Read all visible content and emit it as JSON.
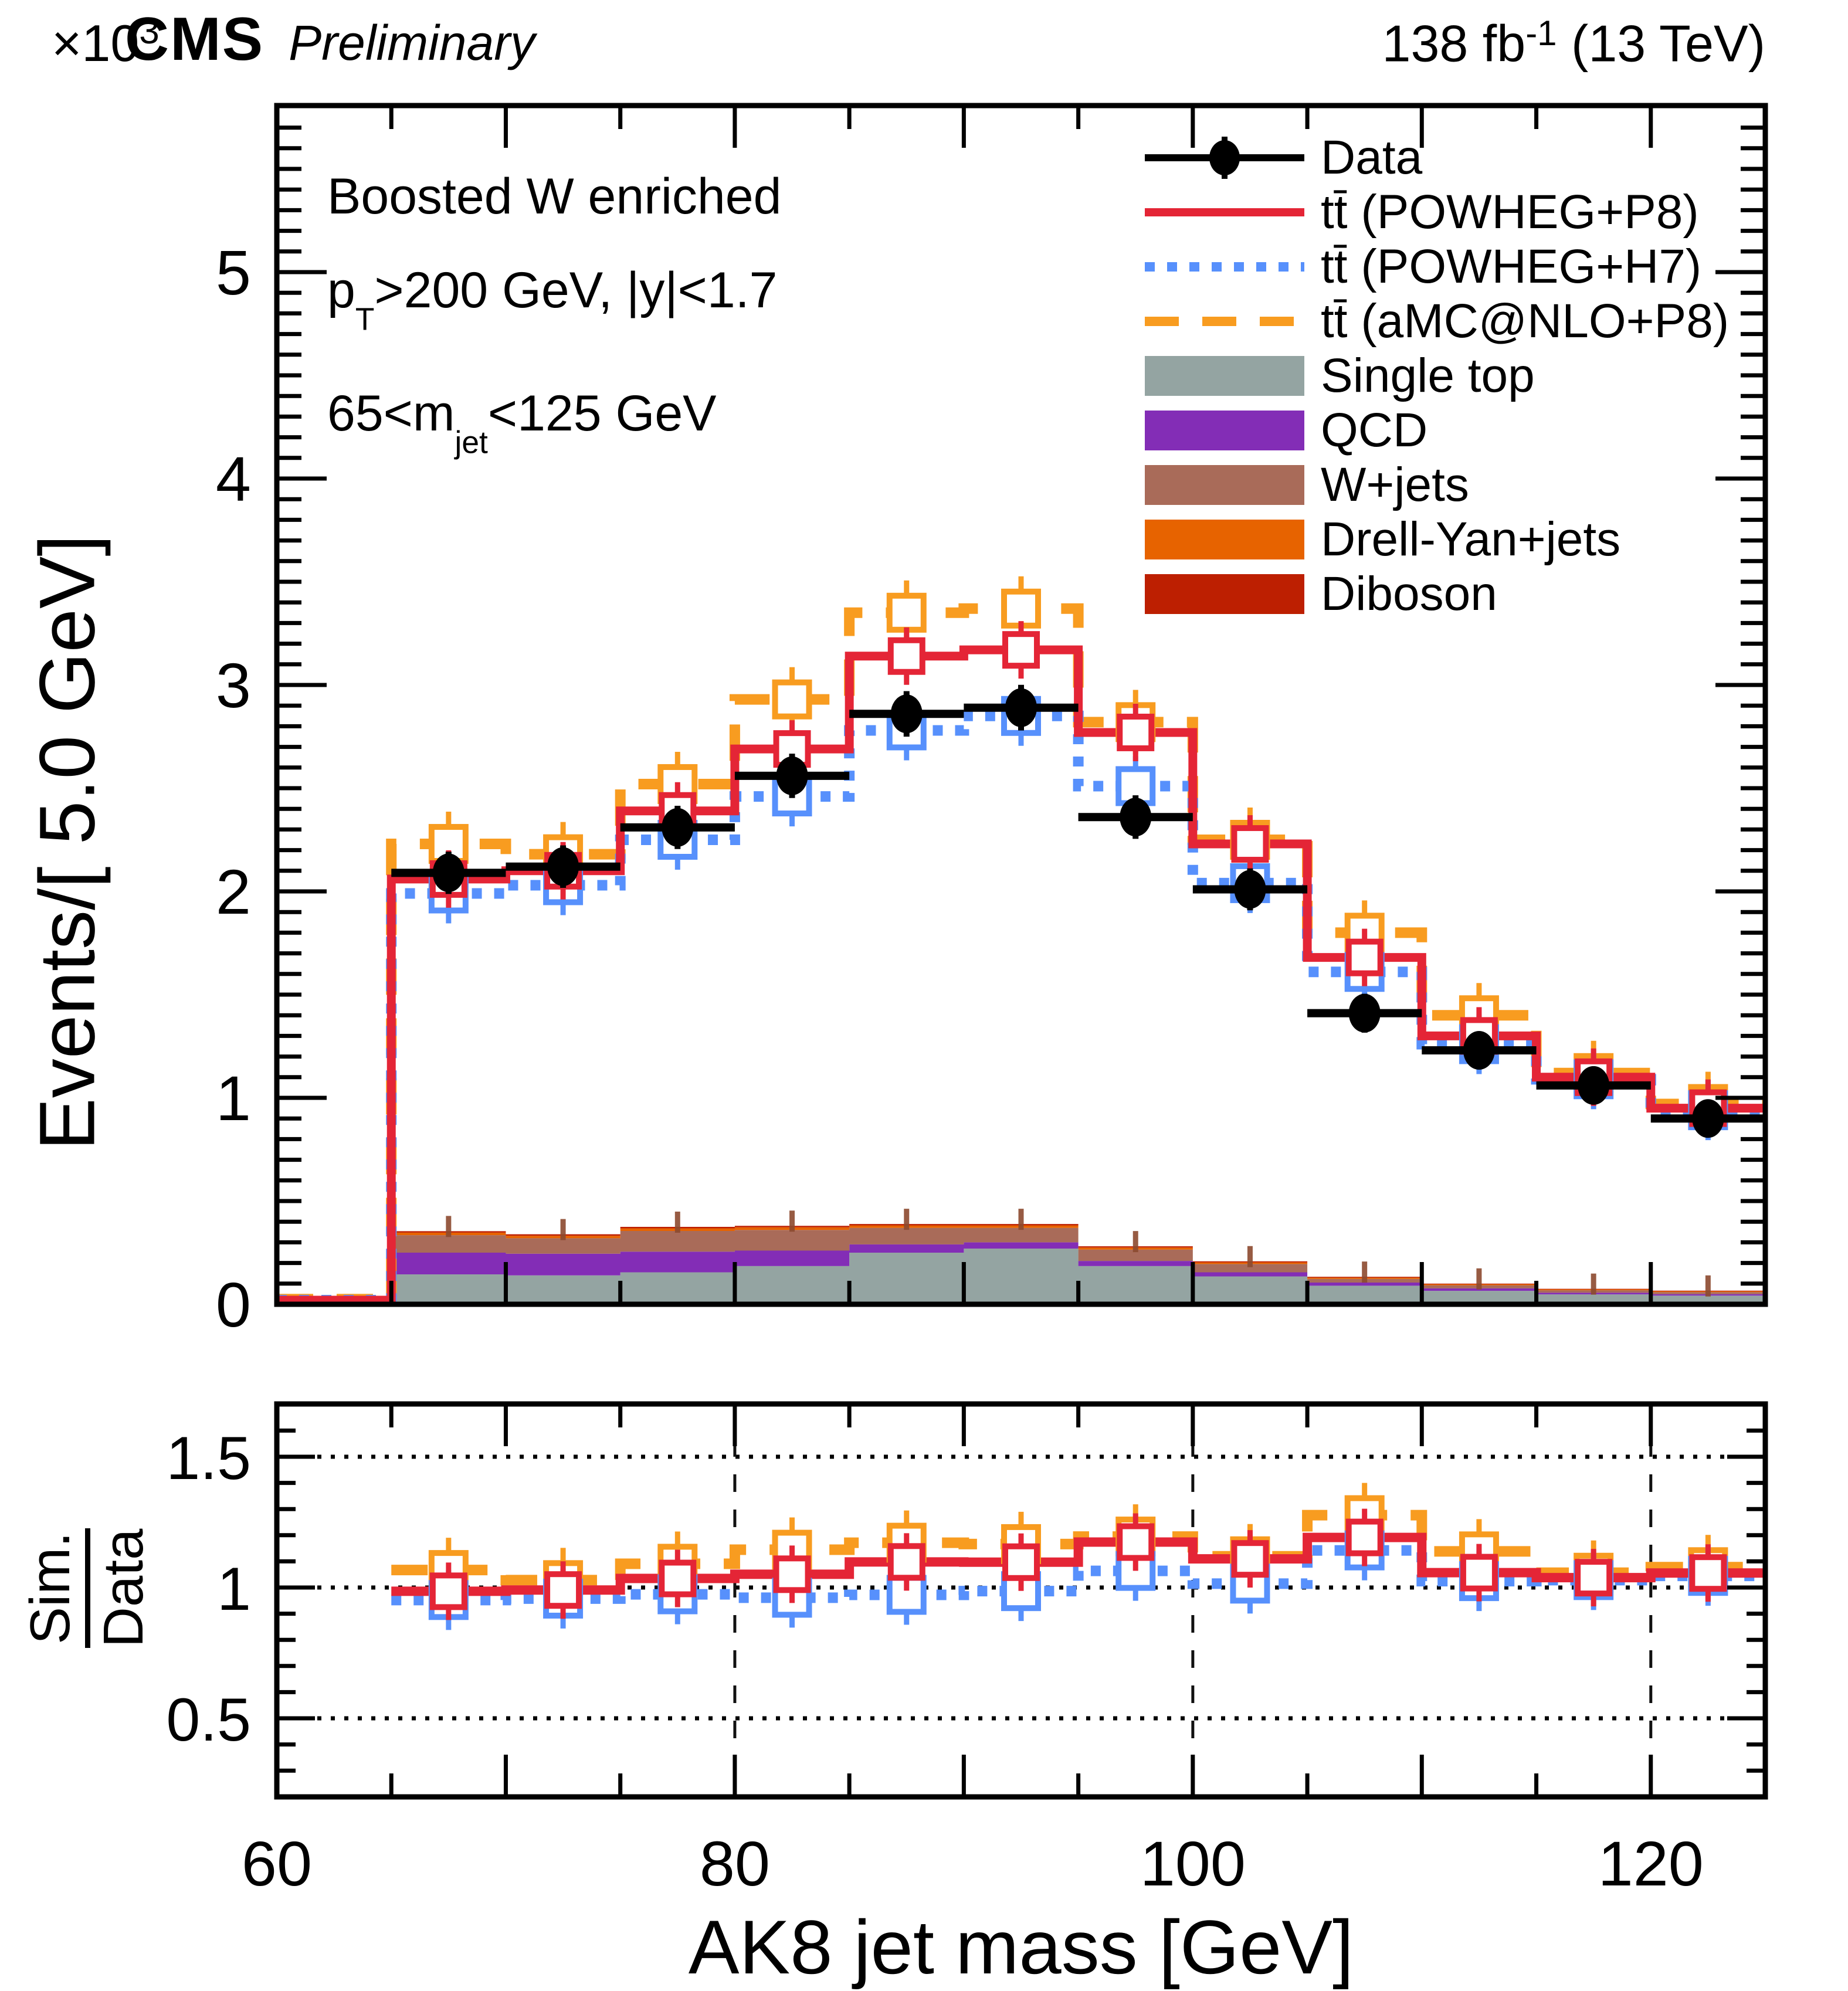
{
  "header": {
    "power": "×10",
    "power_exp": "3",
    "cms": "CMS",
    "preliminary": "Preliminary",
    "lumi_pre": "138 fb",
    "lumi_sup": "-1",
    "lumi_post": " (13 TeV)"
  },
  "annotations": {
    "line1": "Boosted W enriched",
    "line2_pre": "p",
    "line2_sub": "T",
    "line2_post": ">200 GeV, |y|<1.7",
    "line3_pre": "65<m",
    "line3_sub": "jet",
    "line3_post": "<125 GeV"
  },
  "axes": {
    "main_y_title": "Events/[ 5.0 GeV]",
    "ratio_y_title_num": "Sim.",
    "ratio_y_title_den": "Data",
    "x_title": "AK8 jet mass [GeV]",
    "x_tick_labels": [
      "60",
      "80",
      "100",
      "120"
    ],
    "x_tick_values": [
      60,
      80,
      100,
      120
    ],
    "main_y_tick_labels": [
      "0",
      "1",
      "2",
      "3",
      "4",
      "5"
    ],
    "main_y_tick_values": [
      0,
      1,
      2,
      3,
      4,
      5
    ],
    "ratio_y_tick_labels": [
      "0.5",
      "1",
      "1.5"
    ],
    "ratio_y_tick_values": [
      0.5,
      1.0,
      1.5
    ]
  },
  "legend": [
    {
      "id": "data",
      "label": "Data",
      "type": "marker",
      "color": "#000000"
    },
    {
      "id": "tt-powheg-p8",
      "label": "tt̄ (POWHEG+P8)",
      "type": "solid-line",
      "color": "#e42536"
    },
    {
      "id": "tt-powheg-h7",
      "label": "tt̄ (POWHEG+H7)",
      "type": "dotted-line",
      "color": "#5790fc"
    },
    {
      "id": "tt-amcnlo-p8",
      "label": "tt̄ (aMC@NLO+P8)",
      "type": "dashed-line",
      "color": "#f89c20"
    },
    {
      "id": "single-top",
      "label": "Single top",
      "type": "box",
      "color": "#94a4a2"
    },
    {
      "id": "qcd",
      "label": "QCD",
      "type": "box",
      "color": "#832db6"
    },
    {
      "id": "w-jets",
      "label": "W+jets",
      "type": "box",
      "color": "#a96b59"
    },
    {
      "id": "drell-yan-jets",
      "label": "Drell-Yan+jets",
      "type": "box",
      "color": "#e76300"
    },
    {
      "id": "diboson",
      "label": "Diboson",
      "type": "box",
      "color": "#bd1f01"
    }
  ],
  "chart_data": {
    "type": "bar",
    "subtype": "histogram-with-ratio-panel",
    "x_unit": "GeV",
    "y_unit": "10^3 events per 5.0 GeV",
    "bin_edges": [
      60,
      65,
      70,
      75,
      80,
      85,
      90,
      95,
      100,
      105,
      110,
      115,
      120,
      125
    ],
    "xlim": [
      60,
      125
    ],
    "main_ylim": [
      0,
      5.81
    ],
    "ratio_ylim": [
      0.2,
      1.7
    ],
    "grid": {
      "main": false,
      "ratio_h_dotted": [
        0.5,
        1.0,
        1.5
      ],
      "ratio_v_dashed": [
        80,
        100,
        120
      ]
    },
    "series": [
      {
        "name": "Data",
        "style": "points",
        "color": "#000000",
        "values": [
          0.02,
          2.09,
          2.12,
          2.31,
          2.56,
          2.86,
          2.89,
          2.36,
          2.01,
          1.41,
          1.23,
          1.06,
          0.9
        ]
      },
      {
        "name": "tt (POWHEG+P8)",
        "style": "solid",
        "color": "#e42536",
        "values": [
          0.02,
          2.06,
          2.1,
          2.39,
          2.69,
          3.14,
          3.17,
          2.77,
          2.23,
          1.68,
          1.3,
          1.1,
          0.95
        ]
      },
      {
        "name": "tt (POWHEG+H7)",
        "style": "dotted",
        "color": "#5790fc",
        "values": [
          0.02,
          1.99,
          2.03,
          2.25,
          2.46,
          2.78,
          2.85,
          2.51,
          2.04,
          1.61,
          1.26,
          1.09,
          0.94
        ]
      },
      {
        "name": "tt (aMC@NLO+P8)",
        "style": "dashed",
        "color": "#f89c20",
        "values": [
          0.025,
          2.23,
          2.18,
          2.52,
          2.93,
          3.35,
          3.37,
          2.82,
          2.25,
          1.8,
          1.4,
          1.12,
          0.97
        ]
      }
    ],
    "stack": [
      {
        "name": "Single top",
        "color": "#94a4a2",
        "values": [
          0.018,
          0.145,
          0.14,
          0.155,
          0.185,
          0.25,
          0.27,
          0.185,
          0.135,
          0.09,
          0.065,
          0.048,
          0.042
        ]
      },
      {
        "name": "QCD",
        "color": "#832db6",
        "values": [
          0.003,
          0.105,
          0.105,
          0.1,
          0.075,
          0.04,
          0.03,
          0.025,
          0.02,
          0.015,
          0.012,
          0.008,
          0.007
        ]
      },
      {
        "name": "W+jets",
        "color": "#a96b59",
        "values": [
          0.002,
          0.085,
          0.075,
          0.1,
          0.1,
          0.08,
          0.07,
          0.055,
          0.04,
          0.018,
          0.015,
          0.012,
          0.01
        ]
      },
      {
        "name": "Drell-Yan+jets",
        "color": "#e76300",
        "values": [
          0.002,
          0.012,
          0.012,
          0.013,
          0.013,
          0.012,
          0.012,
          0.01,
          0.008,
          0.006,
          0.005,
          0.004,
          0.004
        ]
      },
      {
        "name": "Diboson",
        "color": "#bd1f01",
        "values": [
          0.001,
          0.007,
          0.007,
          0.007,
          0.007,
          0.007,
          0.007,
          0.006,
          0.005,
          0.004,
          0.003,
          0.003,
          0.003
        ]
      }
    ],
    "ratio_note": "ratio panel shows each simulation series divided by Data, bins 65-125 GeV"
  }
}
